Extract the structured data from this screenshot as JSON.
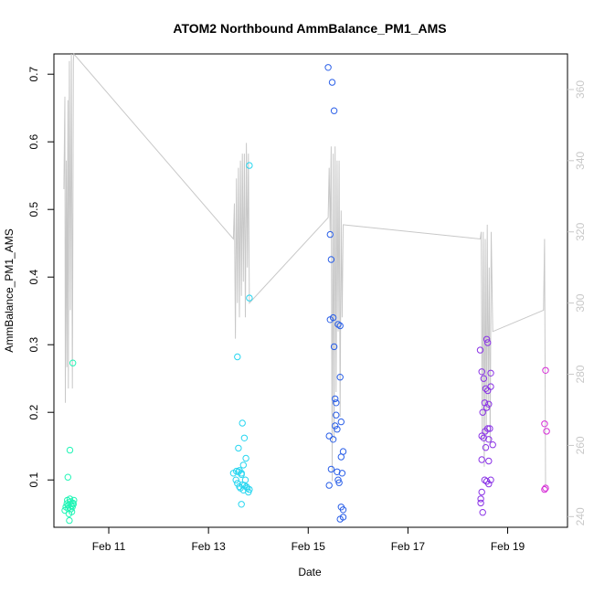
{
  "chart_data": {
    "type": "scatter",
    "title": "ATOM2 Northbound AmmBalance_PM1_AMS",
    "xlabel": "Date",
    "ylabel": "AmmBalance_PM1_AMS",
    "x_tick_labels": [
      "Feb 11",
      "Feb 13",
      "Feb 15",
      "Feb 17",
      "Feb 19"
    ],
    "x_tick_days": [
      11,
      13,
      15,
      17,
      19
    ],
    "xlim": [
      9.9,
      20.2
    ],
    "ylim_left": [
      0.03,
      0.73
    ],
    "y_ticks_left": [
      0.1,
      0.2,
      0.3,
      0.4,
      0.5,
      0.6,
      0.7
    ],
    "ylim_right": [
      237,
      370
    ],
    "y_ticks_right": [
      240,
      260,
      280,
      300,
      320,
      340,
      360
    ],
    "right_axis_color": "#c8c8c8",
    "line_color": "#c8c8c8",
    "series": [
      {
        "color": "#21f5b6",
        "points": [
          [
            10.12,
            0.055
          ],
          [
            10.14,
            0.06
          ],
          [
            10.16,
            0.065
          ],
          [
            10.17,
            0.07
          ],
          [
            10.18,
            0.058
          ],
          [
            10.19,
            0.063
          ],
          [
            10.2,
            0.05
          ],
          [
            10.21,
            0.04
          ],
          [
            10.22,
            0.072
          ],
          [
            10.23,
            0.068
          ],
          [
            10.24,
            0.057
          ],
          [
            10.25,
            0.062
          ],
          [
            10.26,
            0.053
          ],
          [
            10.27,
            0.06
          ],
          [
            10.28,
            0.066
          ],
          [
            10.29,
            0.064
          ],
          [
            10.3,
            0.07
          ],
          [
            10.18,
            0.104
          ],
          [
            10.22,
            0.144
          ],
          [
            10.28,
            0.273
          ]
        ]
      },
      {
        "color": "#28d6f0",
        "points": [
          [
            13.5,
            0.11
          ],
          [
            13.55,
            0.1
          ],
          [
            13.58,
            0.095
          ],
          [
            13.6,
            0.112
          ],
          [
            13.62,
            0.09
          ],
          [
            13.64,
            0.088
          ],
          [
            13.66,
            0.108
          ],
          [
            13.68,
            0.093
          ],
          [
            13.7,
            0.085
          ],
          [
            13.72,
            0.092
          ],
          [
            13.74,
            0.1
          ],
          [
            13.76,
            0.09
          ],
          [
            13.78,
            0.088
          ],
          [
            13.8,
            0.082
          ],
          [
            13.82,
            0.086
          ],
          [
            13.56,
            0.113
          ],
          [
            13.62,
            0.114
          ],
          [
            13.66,
            0.11
          ],
          [
            13.7,
            0.122
          ],
          [
            13.75,
            0.132
          ],
          [
            13.6,
            0.147
          ],
          [
            13.72,
            0.162
          ],
          [
            13.68,
            0.184
          ],
          [
            13.66,
            0.064
          ],
          [
            13.58,
            0.282
          ],
          [
            13.82,
            0.369
          ],
          [
            13.82,
            0.565
          ]
        ]
      },
      {
        "color": "#2a5fe8",
        "points": [
          [
            15.4,
            0.71
          ],
          [
            15.48,
            0.688
          ],
          [
            15.52,
            0.646
          ],
          [
            15.44,
            0.463
          ],
          [
            15.46,
            0.426
          ],
          [
            15.44,
            0.337
          ],
          [
            15.5,
            0.34
          ],
          [
            15.6,
            0.33
          ],
          [
            15.64,
            0.328
          ],
          [
            15.52,
            0.297
          ],
          [
            15.64,
            0.252
          ],
          [
            15.54,
            0.22
          ],
          [
            15.56,
            0.214
          ],
          [
            15.56,
            0.196
          ],
          [
            15.54,
            0.18
          ],
          [
            15.58,
            0.175
          ],
          [
            15.66,
            0.186
          ],
          [
            15.42,
            0.165
          ],
          [
            15.5,
            0.16
          ],
          [
            15.7,
            0.142
          ],
          [
            15.66,
            0.134
          ],
          [
            15.46,
            0.116
          ],
          [
            15.58,
            0.112
          ],
          [
            15.68,
            0.11
          ],
          [
            15.6,
            0.1
          ],
          [
            15.62,
            0.096
          ],
          [
            15.42,
            0.092
          ],
          [
            15.66,
            0.06
          ],
          [
            15.7,
            0.056
          ],
          [
            15.7,
            0.045
          ],
          [
            15.64,
            0.042
          ]
        ]
      },
      {
        "color": "#8a32e6",
        "points": [
          [
            18.45,
            0.292
          ],
          [
            18.48,
            0.26
          ],
          [
            18.52,
            0.25
          ],
          [
            18.56,
            0.235
          ],
          [
            18.6,
            0.232
          ],
          [
            18.66,
            0.258
          ],
          [
            18.66,
            0.238
          ],
          [
            18.62,
            0.212
          ],
          [
            18.54,
            0.214
          ],
          [
            18.58,
            0.207
          ],
          [
            18.5,
            0.2
          ],
          [
            18.6,
            0.176
          ],
          [
            18.64,
            0.176
          ],
          [
            18.55,
            0.172
          ],
          [
            18.48,
            0.165
          ],
          [
            18.52,
            0.162
          ],
          [
            18.62,
            0.16
          ],
          [
            18.7,
            0.152
          ],
          [
            18.56,
            0.148
          ],
          [
            18.48,
            0.13
          ],
          [
            18.62,
            0.128
          ],
          [
            18.54,
            0.1
          ],
          [
            18.66,
            0.1
          ],
          [
            18.58,
            0.098
          ],
          [
            18.62,
            0.094
          ],
          [
            18.48,
            0.082
          ],
          [
            18.46,
            0.072
          ],
          [
            18.46,
            0.066
          ],
          [
            18.5,
            0.052
          ],
          [
            18.58,
            0.308
          ],
          [
            18.6,
            0.303
          ]
        ]
      },
      {
        "color": "#d62bd6",
        "points": [
          [
            19.76,
            0.262
          ],
          [
            19.74,
            0.183
          ],
          [
            19.78,
            0.172
          ],
          [
            19.74,
            0.086
          ],
          [
            19.76,
            0.088
          ]
        ]
      }
    ],
    "line_series_right": [
      [
        10.1,
        332
      ],
      [
        10.12,
        358
      ],
      [
        10.13,
        272
      ],
      [
        10.15,
        340
      ],
      [
        10.16,
        282
      ],
      [
        10.18,
        357
      ],
      [
        10.19,
        276
      ],
      [
        10.21,
        368
      ],
      [
        10.23,
        298
      ],
      [
        10.25,
        370
      ],
      [
        10.27,
        276
      ],
      [
        10.29,
        368
      ],
      [
        10.3,
        370
      ],
      [
        13.5,
        318
      ],
      [
        13.52,
        328
      ],
      [
        13.54,
        290
      ],
      [
        13.56,
        335
      ],
      [
        13.58,
        300
      ],
      [
        13.6,
        338
      ],
      [
        13.62,
        296
      ],
      [
        13.64,
        340
      ],
      [
        13.66,
        302
      ],
      [
        13.68,
        342
      ],
      [
        13.7,
        306
      ],
      [
        13.72,
        342
      ],
      [
        13.74,
        296
      ],
      [
        13.76,
        345
      ],
      [
        13.78,
        310
      ],
      [
        13.8,
        342
      ],
      [
        13.82,
        300
      ],
      [
        15.4,
        324
      ],
      [
        15.42,
        338
      ],
      [
        15.44,
        320
      ],
      [
        15.46,
        344
      ],
      [
        15.48,
        250
      ],
      [
        15.5,
        342
      ],
      [
        15.52,
        262
      ],
      [
        15.54,
        344
      ],
      [
        15.56,
        275
      ],
      [
        15.58,
        340
      ],
      [
        15.6,
        292
      ],
      [
        15.62,
        340
      ],
      [
        15.64,
        268
      ],
      [
        15.66,
        326
      ],
      [
        15.68,
        296
      ],
      [
        15.7,
        322
      ],
      [
        18.45,
        318
      ],
      [
        18.47,
        320
      ],
      [
        18.49,
        262
      ],
      [
        18.51,
        320
      ],
      [
        18.53,
        254
      ],
      [
        18.55,
        318
      ],
      [
        18.57,
        262
      ],
      [
        18.59,
        322
      ],
      [
        18.61,
        270
      ],
      [
        18.63,
        310
      ],
      [
        18.65,
        260
      ],
      [
        18.67,
        320
      ],
      [
        18.7,
        292
      ],
      [
        19.72,
        298
      ],
      [
        19.74,
        318
      ],
      [
        19.76,
        248
      ]
    ]
  }
}
